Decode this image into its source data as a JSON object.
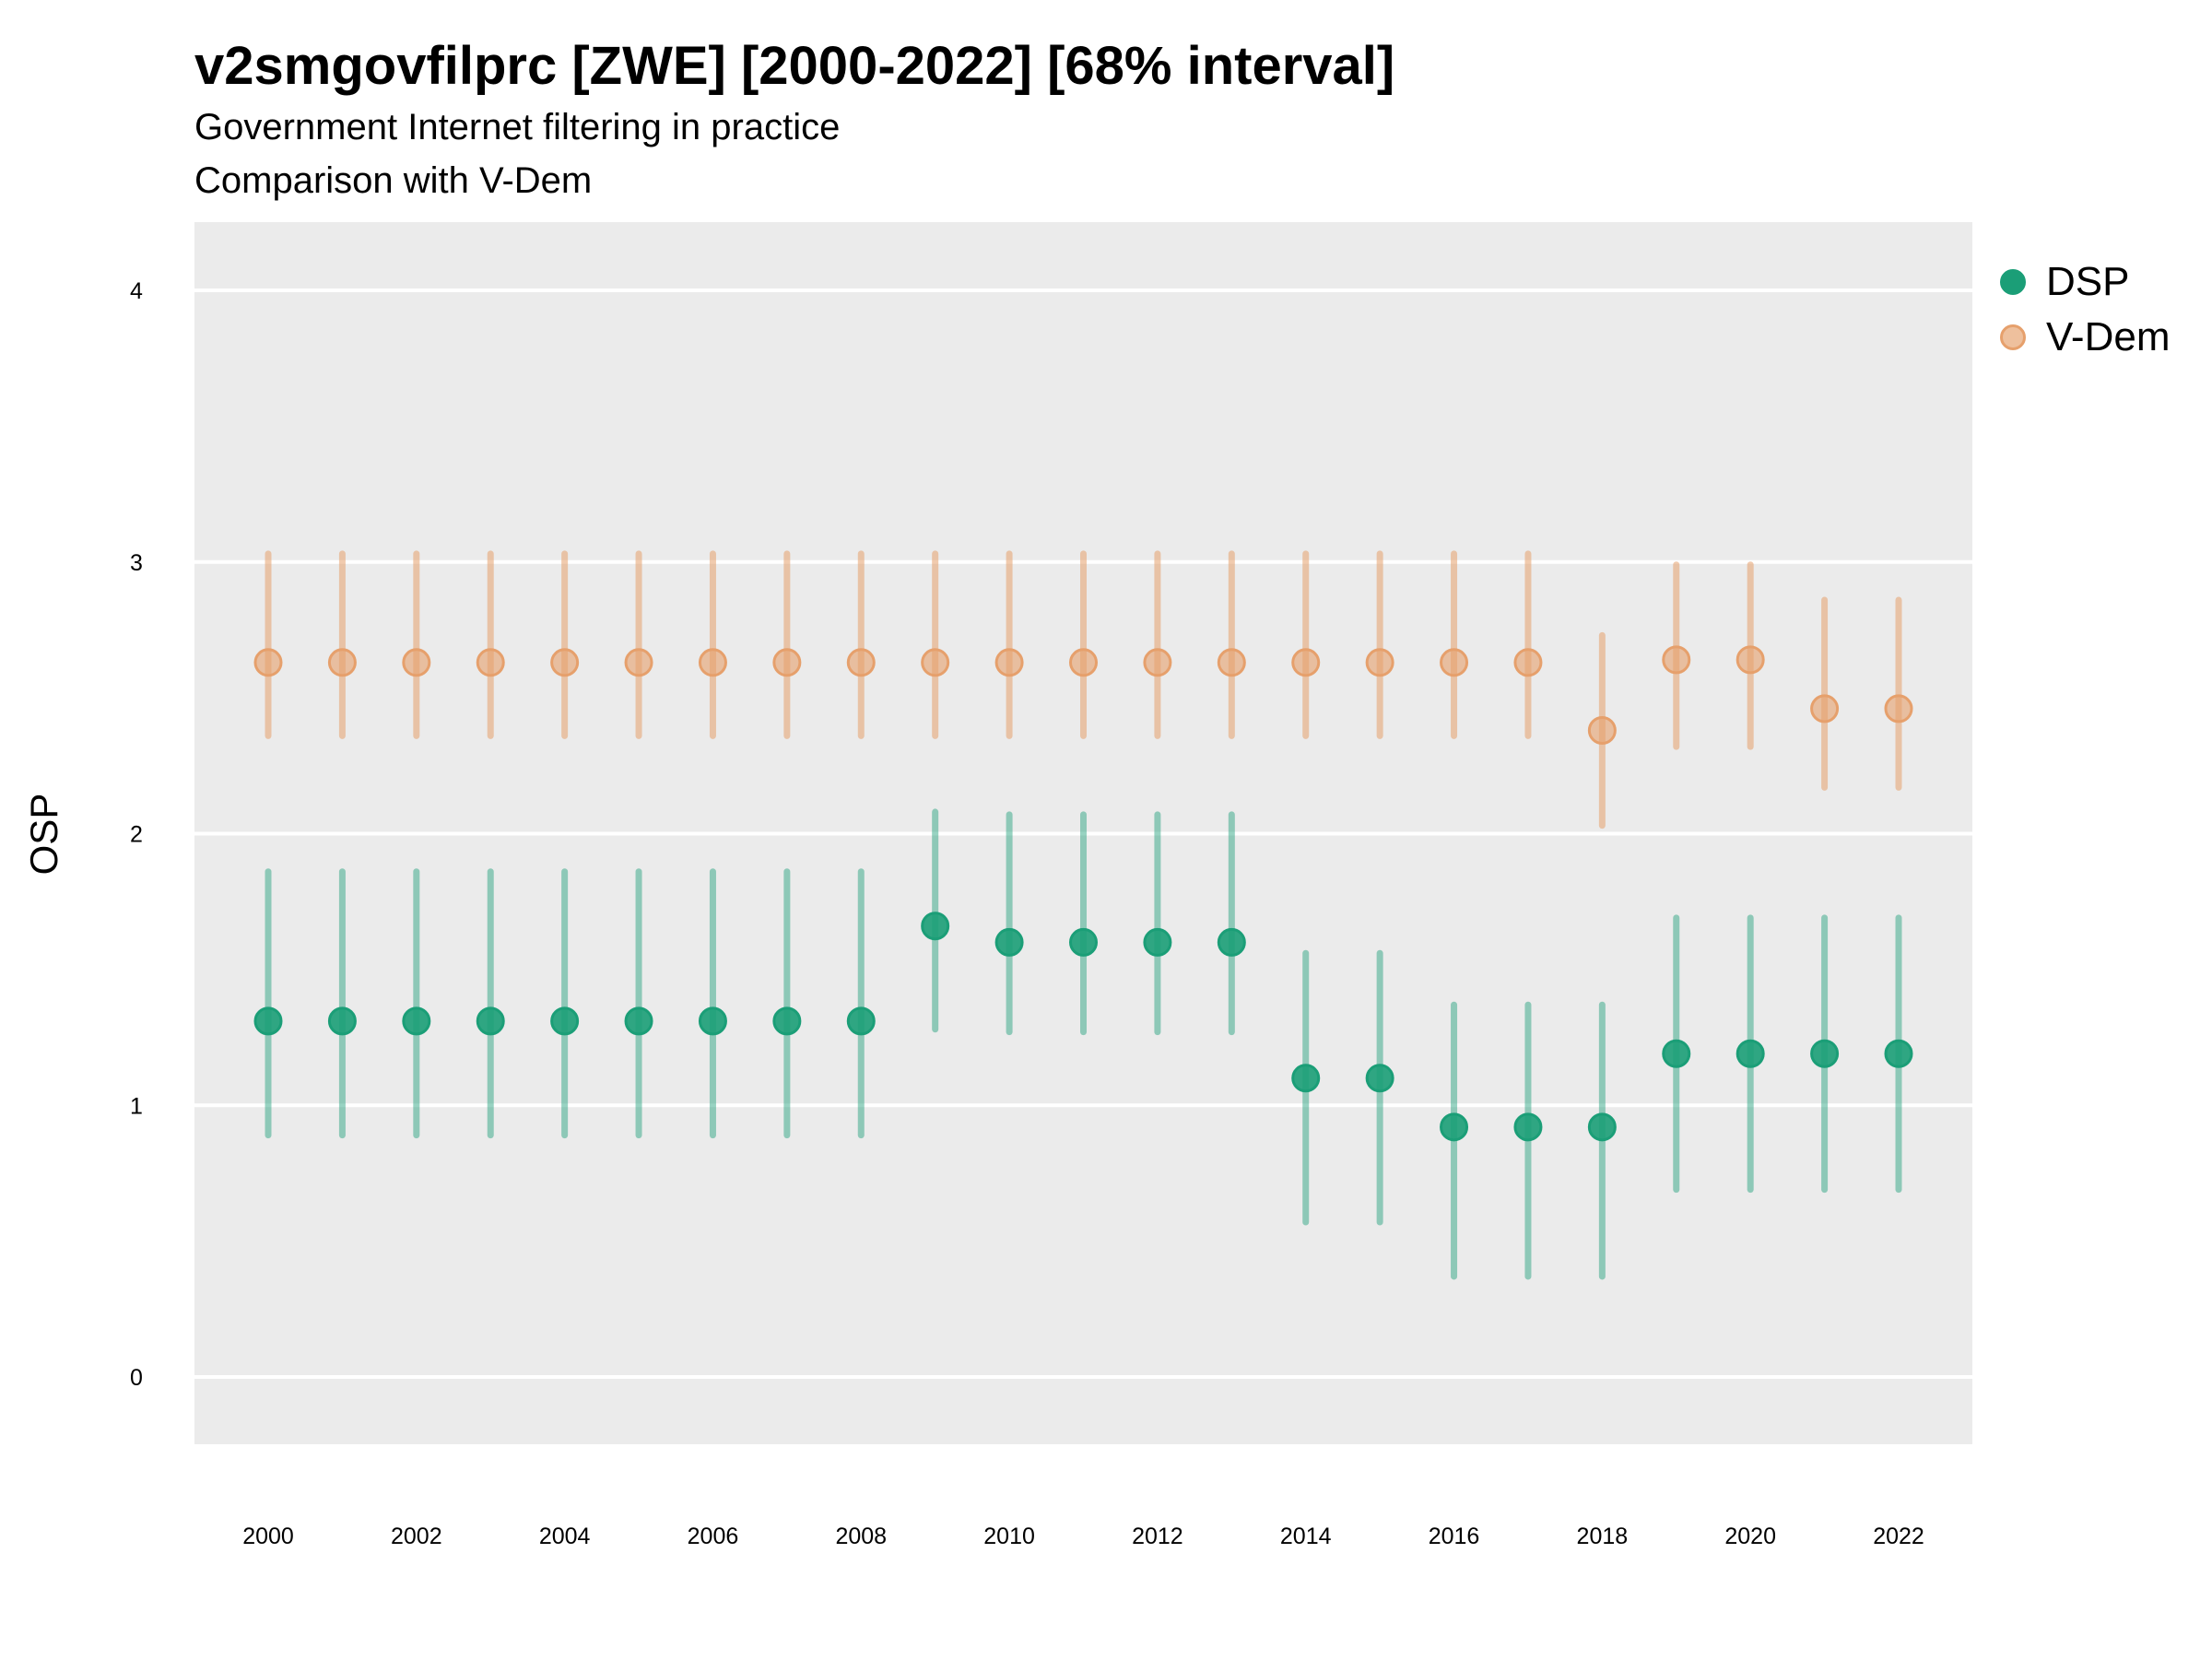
{
  "title": "v2smgovfilprc [ZWE] [2000-2022] [68% interval]",
  "subtitle_line1": "Government Internet filtering in practice",
  "subtitle_line2": "Comparison with V-Dem",
  "colors": {
    "dsp": "#1b9e77",
    "vdem": "#e6a06c",
    "panel_bg": "#ebebeb",
    "grid": "#ffffff"
  },
  "chart_data": {
    "type": "scatter",
    "title": "v2smgovfilprc [ZWE] [2000-2022] [68% interval]",
    "xlabel": "",
    "ylabel": "OSP",
    "ylim": [
      -0.25,
      4.25
    ],
    "xlim": [
      1999,
      2023
    ],
    "yticks": [
      "0",
      "1",
      "2",
      "3",
      "4"
    ],
    "xticks": [
      "2000",
      "2002",
      "2004",
      "2006",
      "2008",
      "2010",
      "2012",
      "2014",
      "2016",
      "2018",
      "2020",
      "2022"
    ],
    "grid": true,
    "legend_position": "right",
    "x": [
      2000,
      2001,
      2002,
      2003,
      2004,
      2005,
      2006,
      2007,
      2008,
      2009,
      2010,
      2011,
      2012,
      2013,
      2014,
      2015,
      2016,
      2017,
      2018,
      2019,
      2020,
      2021,
      2022
    ],
    "series": [
      {
        "name": "DSP",
        "values": [
          1.31,
          1.31,
          1.31,
          1.31,
          1.31,
          1.31,
          1.31,
          1.31,
          1.31,
          1.66,
          1.6,
          1.6,
          1.6,
          1.6,
          1.1,
          1.1,
          0.92,
          0.92,
          0.92,
          1.19,
          1.19,
          1.19,
          1.19
        ],
        "lower": [
          0.89,
          0.89,
          0.89,
          0.89,
          0.89,
          0.89,
          0.89,
          0.89,
          0.89,
          1.28,
          1.27,
          1.27,
          1.27,
          1.27,
          0.57,
          0.57,
          0.37,
          0.37,
          0.37,
          0.69,
          0.69,
          0.69,
          0.69
        ],
        "upper": [
          1.86,
          1.86,
          1.86,
          1.86,
          1.86,
          1.86,
          1.86,
          1.86,
          1.86,
          2.08,
          2.07,
          2.07,
          2.07,
          2.07,
          1.56,
          1.56,
          1.37,
          1.37,
          1.37,
          1.69,
          1.69,
          1.69,
          1.69
        ]
      },
      {
        "name": "V-Dem",
        "values": [
          2.63,
          2.63,
          2.63,
          2.63,
          2.63,
          2.63,
          2.63,
          2.63,
          2.63,
          2.63,
          2.63,
          2.63,
          2.63,
          2.63,
          2.63,
          2.63,
          2.63,
          2.63,
          2.38,
          2.64,
          2.64,
          2.46,
          2.46
        ],
        "lower": [
          2.36,
          2.36,
          2.36,
          2.36,
          2.36,
          2.36,
          2.36,
          2.36,
          2.36,
          2.36,
          2.36,
          2.36,
          2.36,
          2.36,
          2.36,
          2.36,
          2.36,
          2.36,
          2.03,
          2.32,
          2.32,
          2.17,
          2.17
        ],
        "upper": [
          3.03,
          3.03,
          3.03,
          3.03,
          3.03,
          3.03,
          3.03,
          3.03,
          3.03,
          3.03,
          3.03,
          3.03,
          3.03,
          3.03,
          3.03,
          3.03,
          3.03,
          3.03,
          2.73,
          2.99,
          2.99,
          2.86,
          2.86
        ]
      }
    ]
  }
}
